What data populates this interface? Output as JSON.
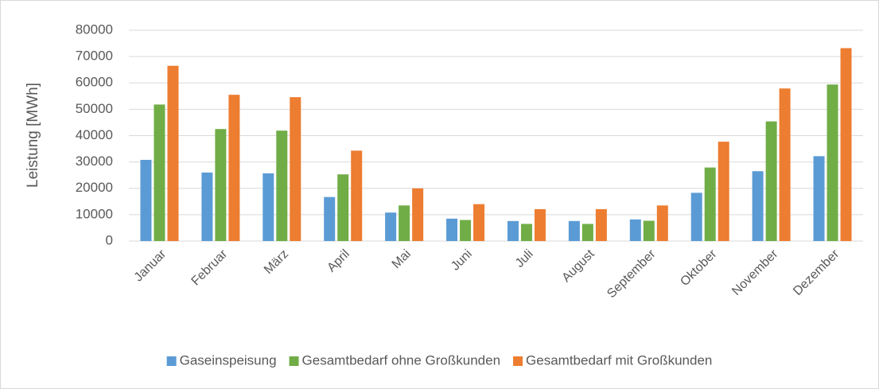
{
  "chart_data": {
    "type": "bar",
    "ylabel": "Leistung [MWh]",
    "categories": [
      "Januar",
      "Februar",
      "März",
      "April",
      "Mai",
      "Juni",
      "Juli",
      "August",
      "September",
      "Oktober",
      "November",
      "Dezember"
    ],
    "series": [
      {
        "name": "Gaseinspeisung",
        "color": "#5b9bd5",
        "values": [
          30800,
          26000,
          25700,
          16700,
          10800,
          8500,
          7600,
          7600,
          8200,
          18300,
          26500,
          32200
        ]
      },
      {
        "name": "Gesamtbedarf ohne Großkunden",
        "color": "#70ad47",
        "values": [
          51800,
          42500,
          41900,
          25300,
          13500,
          8000,
          6500,
          6500,
          7700,
          27900,
          45400,
          59400
        ]
      },
      {
        "name": "Gesamtbedarf mit Großkunden",
        "color": "#ed7d31",
        "values": [
          66500,
          55500,
          54600,
          34300,
          20000,
          14000,
          12100,
          12100,
          13500,
          37700,
          57900,
          73200
        ]
      }
    ],
    "ylim": [
      0,
      80000
    ],
    "yticks": [
      0,
      10000,
      20000,
      30000,
      40000,
      50000,
      60000,
      70000,
      80000
    ],
    "grid": true,
    "legend": "bottom"
  }
}
